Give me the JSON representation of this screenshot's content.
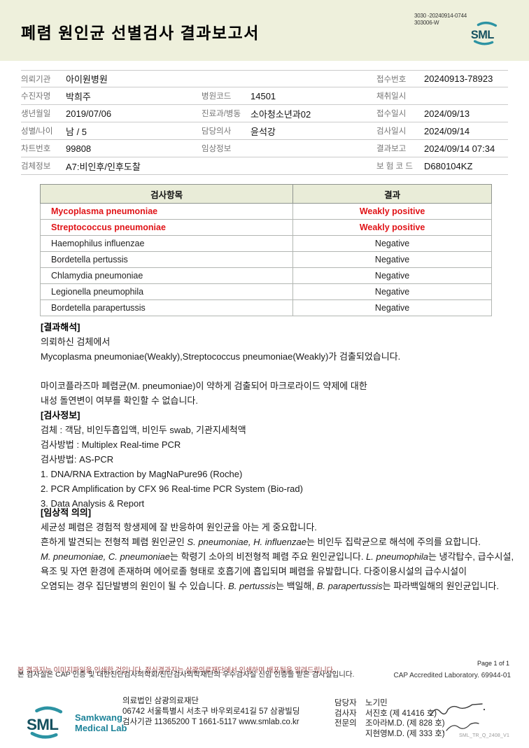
{
  "header": {
    "title": "폐렴 원인균 선별검사 결과보고서",
    "doc_number_line1": "3030 -20240914-0744",
    "doc_number_line2": "303006-W",
    "logo_text": "SML"
  },
  "patient_info": {
    "rows": [
      [
        {
          "label": "의뢰기관",
          "value": "아이원병원"
        },
        {
          "label": "",
          "value": ""
        },
        {
          "label": "접수번호",
          "value": "20240913-78923"
        }
      ],
      [
        {
          "label": "수진자명",
          "value": "박희주"
        },
        {
          "label": "병원코드",
          "value": "14501"
        },
        {
          "label": "채취일시",
          "value": ""
        }
      ],
      [
        {
          "label": "생년월일",
          "value": "2019/07/06"
        },
        {
          "label": "진료과/병동",
          "value": "소아청소년과02"
        },
        {
          "label": "접수일시",
          "value": "2024/09/13"
        }
      ],
      [
        {
          "label": "성별/나이",
          "value": "남 / 5"
        },
        {
          "label": "담당의사",
          "value": "윤석강"
        },
        {
          "label": "검사일시",
          "value": "2024/09/14"
        }
      ],
      [
        {
          "label": "차트번호",
          "value": "99808"
        },
        {
          "label": "임상정보",
          "value": ""
        },
        {
          "label": "결과보고",
          "value": "2024/09/14 07:34"
        }
      ],
      [
        {
          "label": "검체정보",
          "value": "A7:비인후/인후도찰"
        },
        {
          "label": "",
          "value": ""
        },
        {
          "label": "보 험 코 드",
          "value": "D680104KZ"
        }
      ]
    ]
  },
  "results_table": {
    "headers": {
      "item": "검사항목",
      "result": "결과"
    },
    "rows": [
      {
        "item": "Mycoplasma pneumoniae",
        "result": "Weakly positive"
      },
      {
        "item": "Streptococcus pneumoniae",
        "result": "Weakly positive"
      },
      {
        "item": "Haemophilus influenzae",
        "result": "Negative"
      },
      {
        "item": "Bordetella pertussis",
        "result": "Negative"
      },
      {
        "item": "Chlamydia pneumoniae",
        "result": "Negative"
      },
      {
        "item": "Legionella pneumophila",
        "result": "Negative"
      },
      {
        "item": "Bordetella parapertussis",
        "result": "Negative"
      }
    ]
  },
  "interpretation": {
    "heading": "[결과해석]",
    "lines": [
      "의뢰하신 검체에서",
      "Mycoplasma pneumoniae(Weakly),Streptococcus pneumoniae(Weakly)가 검출되었습니다.",
      "",
      "마이코플라즈마 폐렴균(M. pneumoniae)이 약하게 검출되어 마크로라이드 약제에 대한",
      "내성 돌연변이 여부를 확인할 수 없습니다."
    ]
  },
  "test_info": {
    "heading": "[검사정보]",
    "lines": [
      "검체 : 객담, 비인두흡입액, 비인두 swab, 기관지세척액",
      "검사방법 : Multiplex Real-time PCR",
      "검사방법: AS-PCR",
      "1. DNA/RNA Extraction by MagNaPure96 (Roche)",
      "2. PCR Amplification by CFX 96 Real-time PCR System (Bio-rad)",
      "3. Data Analysis & Report"
    ]
  },
  "clinical": {
    "heading": "[임상적 의의]",
    "lines": [
      [
        {
          "t": "세균성 폐렴은 경험적 항생제에 잘 반응하여 원인균을 아는 게 중요합니다."
        }
      ],
      [
        {
          "t": "흔하게 발견되는 전형적 폐렴 원인균인 "
        },
        {
          "t": "S. pneumoniae, H. influenzae",
          "i": true
        },
        {
          "t": "는 비인두 집락균으로 해석에 주의를 요합니다."
        }
      ],
      [
        {
          "t": "M. pneumoniae, C. pneumoniae",
          "i": true
        },
        {
          "t": "는 학령기 소아의 비전형적 폐렴 주요 원인균입니다. "
        },
        {
          "t": "L. pneumophila",
          "i": true
        },
        {
          "t": "는 냉각탑수, 급수시설,"
        }
      ],
      [
        {
          "t": "욕조 및 자연 환경에 존재하며 에어로졸 형태로 호흡기에 흡입되며 폐렴을 유발합니다. 다중이용시설의 급수시설이"
        }
      ],
      [
        {
          "t": "오염되는 경우 집단발병의 원인이 될 수 있습니다. "
        },
        {
          "t": "B. pertussis",
          "i": true
        },
        {
          "t": "는 백일해, "
        },
        {
          "t": "B. parapertussis",
          "i": true
        },
        {
          "t": "는 파라백일해의 원인균입니다."
        }
      ]
    ]
  },
  "footer": {
    "notice_line1": "본 결과지는 이미지파일을 인쇄한 것입니다. 정식결과지는 삼광의료재단에서 인쇄하며 배포됨을 알려드립니다.",
    "notice_line2": "본 검사실은 CAP 인증 및 대한진단검사의학회/진단검사의학재단의 우수검사실 신임 인증을 받은 검사실입니다.",
    "page_label": "Page 1 of 1",
    "cap_label": "CAP Accredited Laboratory. 69944-01",
    "org_name": "의료법인 삼광의료재단",
    "org_address": "06742 서울특별시 서초구 바우뫼로41길 57 삼광빌딩",
    "org_contact": "검사기관 11365200 T 1661-5117 www.smlab.co.kr",
    "logo_text": "SML",
    "logo_sub1": "Samkwang",
    "logo_sub2": "Medical Lab",
    "staff": [
      {
        "role": "담당자",
        "name": "노기민"
      },
      {
        "role": "검사자",
        "name": "서진호 (제 41416 호)"
      },
      {
        "role": "전문의",
        "name": "조아라M.D. (제 828 호)"
      },
      {
        "role": "",
        "name": "지현영M.D. (제 333 호)"
      }
    ],
    "doc_code": "SML_TR_Q_2408_V1"
  },
  "colors": {
    "header_bg": "#eef0dc",
    "table_header_bg": "#e9ecd8",
    "positive_red": "#e01418",
    "brand_teal": "#1d8399",
    "brand_teal_dark": "#14505f"
  }
}
